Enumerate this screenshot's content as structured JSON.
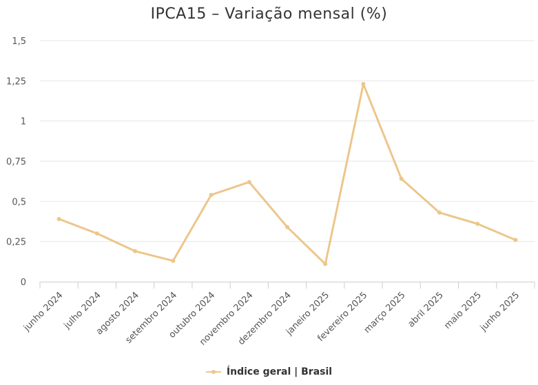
{
  "chart_data": {
    "type": "line",
    "title": "IPCA15 – Variação mensal (%)",
    "xlabel": "",
    "ylabel": "",
    "categories": [
      "junho 2024",
      "julho 2024",
      "agosto 2024",
      "setembro 2024",
      "outubro 2024",
      "novembro 2024",
      "dezembro 2024",
      "janeiro 2025",
      "fevereiro 2025",
      "março 2025",
      "abril 2025",
      "maio 2025",
      "junho 2025"
    ],
    "series": [
      {
        "name": "Índice geral | Brasil",
        "color": "#ecc68b",
        "values": [
          0.39,
          0.3,
          0.19,
          0.13,
          0.54,
          0.62,
          0.34,
          0.11,
          1.23,
          0.64,
          0.43,
          0.36,
          0.26
        ]
      }
    ],
    "ylim": [
      0,
      1.5
    ],
    "yticks": [
      0,
      0.25,
      0.5,
      0.75,
      1,
      1.25,
      1.5
    ],
    "ytick_labels": [
      "0",
      "0,25",
      "0,5",
      "0,75",
      "1",
      "1,25",
      "1,5"
    ],
    "grid": true,
    "legend_position": "bottom-center"
  }
}
